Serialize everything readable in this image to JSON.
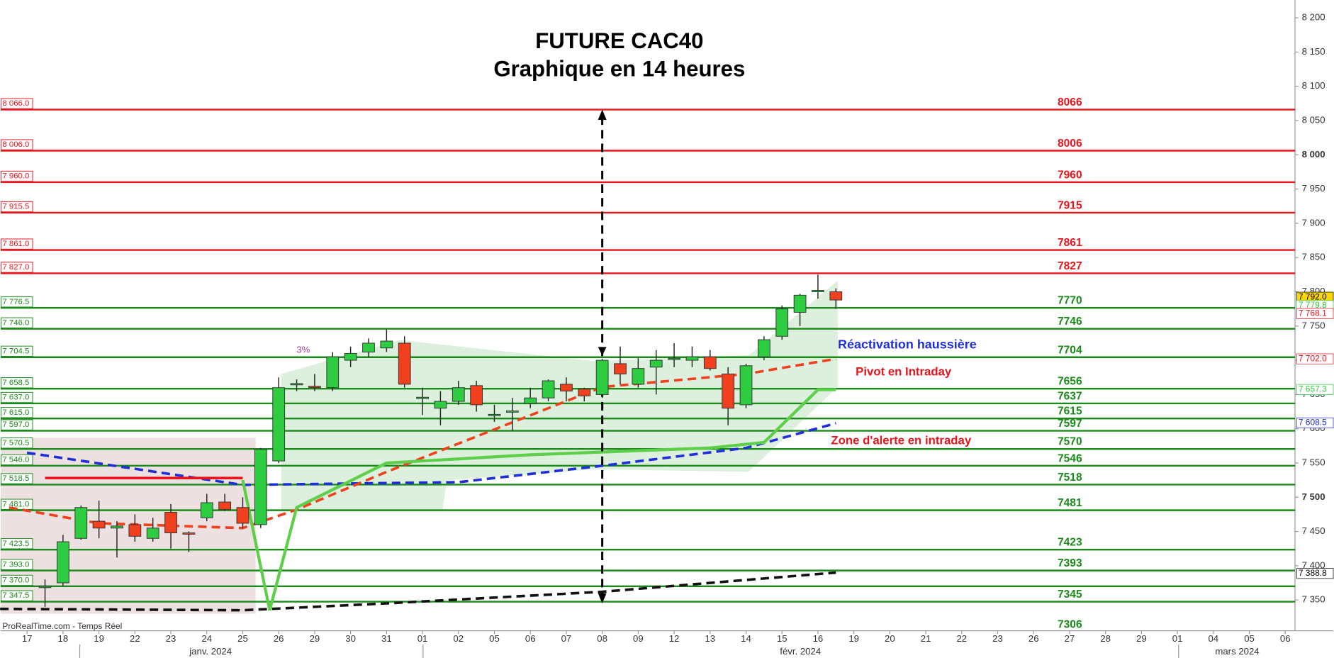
{
  "chart_data": {
    "type": "candlestick",
    "title": "FUTURE CAC40",
    "subtitle": "Graphique en 14 heures",
    "source": "ProRealTime.com - Temps Réel",
    "categories": [
      "17",
      null,
      "18",
      null,
      "19",
      null,
      "22",
      null,
      "23",
      null,
      "24",
      null,
      "25",
      null,
      "26",
      null,
      "29",
      null,
      "30",
      null,
      "31",
      null,
      "01",
      null,
      "02",
      null,
      "05",
      null,
      "06",
      null,
      "07",
      null,
      "08",
      null,
      "09",
      null,
      "12",
      null,
      "13",
      null,
      "14",
      null,
      "15",
      null,
      "16",
      null,
      "19",
      null,
      "20",
      null,
      "21",
      null,
      "22",
      null,
      "23",
      null,
      "26",
      null,
      "27",
      null,
      "28",
      null,
      "29",
      null,
      "01",
      null,
      "04",
      null,
      "05",
      null,
      "06"
    ],
    "months": [
      "janv. 2024",
      "févr. 2024",
      "mars 2024"
    ],
    "open": [
      null,
      7368,
      7375,
      7440,
      7465,
      7455,
      7460,
      7440,
      7478,
      7448,
      7470,
      7493,
      7485,
      7460,
      7553,
      7665,
      7662,
      7660,
      7700,
      7712,
      7718,
      7725,
      7645,
      7630,
      7640,
      7663,
      7620,
      7625,
      7637,
      7645,
      7665,
      7658,
      7650,
      7695,
      7665,
      7690,
      7702,
      7700,
      7705,
      7680,
      7635,
      7705,
      7735,
      7770,
      7800,
      7800,
      null,
      null,
      null,
      null,
      null,
      null,
      null,
      null,
      null,
      null,
      null,
      null,
      null,
      null,
      null,
      null,
      null,
      null,
      null,
      null,
      null,
      null,
      null,
      null,
      null
    ],
    "high": [
      null,
      7380,
      7445,
      7488,
      7495,
      7465,
      7475,
      7470,
      7490,
      7450,
      7505,
      7505,
      7500,
      7572,
      7675,
      7672,
      7680,
      7712,
      7720,
      7732,
      7745,
      7735,
      7660,
      7655,
      7670,
      7670,
      7635,
      7645,
      7660,
      7672,
      7675,
      7660,
      7702,
      7720,
      7703,
      7715,
      7725,
      7720,
      7715,
      7690,
      7695,
      7735,
      7780,
      7797,
      7825,
      7805,
      null,
      null,
      null,
      null,
      null,
      null,
      null,
      null,
      null,
      null,
      null,
      null,
      null,
      null,
      null,
      null,
      null,
      null,
      null,
      null,
      null,
      null,
      null,
      null,
      null
    ],
    "low": [
      null,
      7340,
      7370,
      7438,
      7440,
      7412,
      7435,
      7435,
      7425,
      7420,
      7465,
      7480,
      7455,
      7455,
      7550,
      7655,
      7655,
      7655,
      7690,
      7705,
      7712,
      7660,
      7620,
      7605,
      7635,
      7625,
      7610,
      7597,
      7630,
      7640,
      7640,
      7640,
      7645,
      7665,
      7660,
      7650,
      7690,
      7690,
      7685,
      7605,
      7630,
      7700,
      7730,
      7750,
      7790,
      7775,
      null,
      null,
      null,
      null,
      null,
      null,
      null,
      null,
      null,
      null,
      null,
      null,
      null,
      null,
      null,
      null,
      null,
      null,
      null,
      null,
      null,
      null,
      null,
      null,
      null
    ],
    "close": [
      null,
      7370,
      7435,
      7485,
      7455,
      7458,
      7443,
      7455,
      7448,
      7446,
      7492,
      7482,
      7462,
      7570,
      7660,
      7666,
      7660,
      7705,
      7710,
      7725,
      7728,
      7665,
      7646,
      7640,
      7660,
      7635,
      7621,
      7626,
      7645,
      7670,
      7655,
      7648,
      7700,
      7680,
      7688,
      7700,
      7703,
      7705,
      7688,
      7630,
      7692,
      7730,
      7775,
      7795,
      7802,
      7788,
      null,
      null,
      null,
      null,
      null,
      null,
      null,
      null,
      null,
      null,
      null,
      null,
      null,
      null,
      null,
      null,
      null,
      null,
      null,
      null,
      null,
      null,
      null,
      null,
      null
    ],
    "up_color": "#2ecc40",
    "down_color": "#f0401e",
    "ylim": [
      7305,
      8226
    ],
    "yticks": [
      {
        "value": 8200,
        "label": "8 200"
      },
      {
        "value": 8150,
        "label": "8 150"
      },
      {
        "value": 8100,
        "label": "8 100"
      },
      {
        "value": 8050,
        "label": "8 050"
      },
      {
        "value": 8000,
        "label": "8 000"
      },
      {
        "value": 7950,
        "label": "7 950"
      },
      {
        "value": 7900,
        "label": "7 900"
      },
      {
        "value": 7850,
        "label": "7 850"
      },
      {
        "value": 7800,
        "label": "7 800"
      },
      {
        "value": 7750,
        "label": "7 750"
      },
      {
        "value": 7700,
        "label": "7 700"
      },
      {
        "value": 7650,
        "label": "7 650"
      },
      {
        "value": 7600,
        "label": "7 600"
      },
      {
        "value": 7550,
        "label": "7 550"
      },
      {
        "value": 7500,
        "label": "7 500"
      },
      {
        "value": 7450,
        "label": "7 450"
      },
      {
        "value": 7400,
        "label": "7 400"
      },
      {
        "value": 7350,
        "label": "7 350"
      }
    ],
    "levels": [
      {
        "value": 8066.0,
        "label": "8 066.0",
        "target": 8066,
        "color": "#e8141c"
      },
      {
        "value": 8006.0,
        "label": "8 006.0",
        "target": 8006,
        "color": "#e8141c"
      },
      {
        "value": 7960.0,
        "label": "7 960.0",
        "target": 7960,
        "color": "#e8141c"
      },
      {
        "value": 7915.5,
        "label": "7 915.5",
        "target": 7915,
        "color": "#e8141c"
      },
      {
        "value": 7861.0,
        "label": "7 861.0",
        "target": 7861,
        "color": "#e8141c"
      },
      {
        "value": 7827.0,
        "label": "7 827.0",
        "target": 7827,
        "color": "#e8141c"
      },
      {
        "value": 7776.5,
        "label": "7 776.5",
        "target": 7770,
        "color": "#1a8a1a"
      },
      {
        "value": 7746.0,
        "label": "7 746.0",
        "target": 7746,
        "color": "#1a8a1a"
      },
      {
        "value": 7704.5,
        "label": "7 704.5",
        "target": 7704,
        "color": "#1a8a1a"
      },
      {
        "value": 7658.5,
        "label": "7 658.5",
        "target": 7656,
        "color": "#1a8a1a"
      },
      {
        "value": 7637.0,
        "label": "7 637.0",
        "target": 7637,
        "color": "#1a8a1a"
      },
      {
        "value": 7615.0,
        "label": "7 615.0",
        "target": 7615,
        "color": "#1a8a1a"
      },
      {
        "value": 7597.0,
        "label": "7 597.0",
        "target": 7597,
        "color": "#1a8a1a"
      },
      {
        "value": 7570.5,
        "label": "7 570.5",
        "target": 7570,
        "color": "#1a8a1a"
      },
      {
        "value": 7546.0,
        "label": "7 546.0",
        "target": 7546,
        "color": "#1a8a1a"
      },
      {
        "value": 7518.5,
        "label": "7 518.5",
        "target": 7518,
        "color": "#1a8a1a"
      },
      {
        "value": 7481.0,
        "label": "7 481.0",
        "target": 7481,
        "color": "#1a8a1a"
      },
      {
        "value": 7423.5,
        "label": "7 423.5",
        "target": 7423,
        "color": "#1a8a1a"
      },
      {
        "value": 7393.0,
        "label": "7 393.0",
        "target": 7393,
        "color": "#1a8a1a"
      },
      {
        "value": 7370.0,
        "label": "7 370.0",
        "color": "#1a8a1a"
      },
      {
        "value": 7347.5,
        "label": "7 347.5",
        "target": 7345,
        "color": "#1a8a1a"
      }
    ],
    "extra_target": 7306,
    "price_tags": [
      {
        "value": 7792.0,
        "label": "7 792.0",
        "color": "#000",
        "fill": "#ffd700"
      },
      {
        "value": 7779.8,
        "label": "7 779.8",
        "color": "#2ecc40",
        "fill": "#fff"
      },
      {
        "value": 7768.1,
        "label": "7 768.1",
        "color": "#e8141c",
        "fill": "#fff"
      },
      {
        "value": 7702.0,
        "label": "7 702.0",
        "color": "#e8141c",
        "fill": "#fff"
      },
      {
        "value": 7657.3,
        "label": "7 657.3",
        "color": "#2ecc40",
        "fill": "#fff"
      },
      {
        "value": 7608.5,
        "label": "7 608.5",
        "color": "#1f2fd8",
        "fill": "#fff"
      },
      {
        "value": 7388.8,
        "label": "7 388.8",
        "color": "#000",
        "fill": "#fff"
      }
    ],
    "indicators": [
      {
        "color": "#1f2fd8",
        "dash": true,
        "width": 3,
        "x": [
          0,
          12,
          18,
          24,
          32,
          40,
          45
        ],
        "values": [
          7565,
          7518,
          7520,
          7522,
          7546,
          7572,
          7608
        ]
      },
      {
        "color": "#f0401e",
        "dash": true,
        "width": 3,
        "x": [
          -1,
          4,
          12,
          15,
          20,
          26,
          32,
          40,
          45
        ],
        "values": [
          7485,
          7462,
          7455,
          7482,
          7537,
          7599,
          7661,
          7680,
          7702
        ]
      },
      {
        "color": "#5ecf4a",
        "dash": false,
        "width": 3.5,
        "x": [
          12,
          13.5,
          15,
          20,
          28,
          38,
          41,
          44,
          45
        ],
        "values": [
          7525,
          7335,
          7485,
          7550,
          7562,
          7572,
          7580,
          7657,
          7657
        ]
      },
      {
        "color": "#111",
        "dash": true,
        "width": 3,
        "x": [
          -1.5,
          12,
          20,
          32,
          45
        ],
        "values": [
          7337,
          7335,
          7345,
          7362,
          7390
        ]
      },
      {
        "color": "#e8141c",
        "dash": false,
        "width": 3,
        "x": [
          1,
          12
        ],
        "values": [
          7528,
          7528
        ]
      }
    ],
    "annotations": [
      "Réactivation haussière",
      "Pivot en Intraday",
      "Zone d'alerte en intraday",
      "3%"
    ],
    "annotation_colors": [
      "#1f2fd8",
      "#e8141c",
      "#e8141c",
      "#a040a0"
    ]
  }
}
